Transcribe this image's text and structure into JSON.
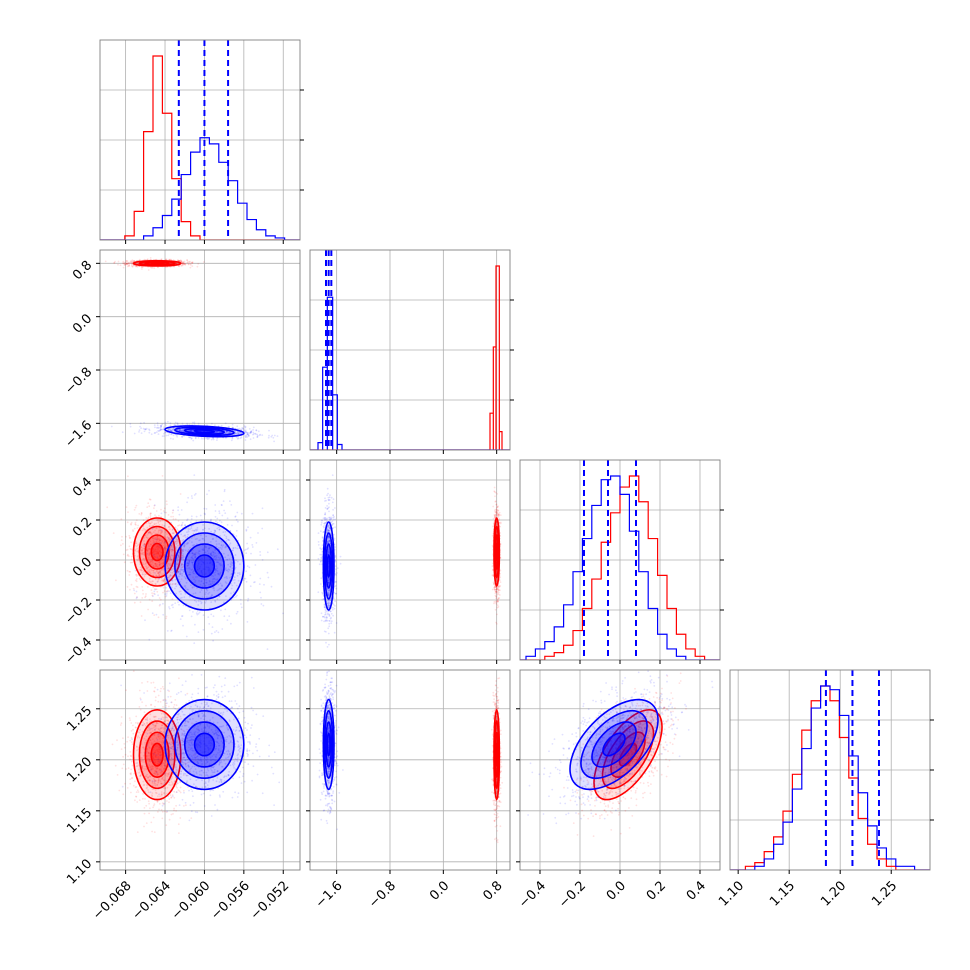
{
  "chart_data": {
    "type": "corner",
    "grid": true,
    "colors": {
      "red": "#ff0000",
      "blue": "#0000ff",
      "grid": "#b0b0b0",
      "axes": "#000000"
    },
    "series": [
      {
        "name": "",
        "color": "#ff0000",
        "mean": [
          -0.0648,
          0.8,
          0.04,
          1.205
        ],
        "std": [
          0.0012,
          0.02,
          0.085,
          0.022
        ],
        "corr": {
          "0-1": 0.0,
          "0-2": 0.0,
          "0-3": 0.0,
          "1-2": 0.0,
          "1-3": 0.0,
          "2-3": 0.62
        }
      },
      {
        "name": "",
        "color": "#0000ff",
        "mean": [
          -0.06,
          -1.72,
          -0.03,
          1.215
        ],
        "std": [
          0.002,
          0.04,
          0.11,
          0.022
        ],
        "corr": {
          "0-1": -0.35,
          "0-2": 0.0,
          "0-3": 0.0,
          "1-2": 0.0,
          "1-3": 0.0,
          "2-3": 0.55
        }
      }
    ],
    "parameters": [
      {
        "range": [
          -0.0706,
          -0.0503
        ],
        "ticks": [
          "−0.068",
          "−0.064",
          "−0.060",
          "−0.056",
          "−0.052"
        ],
        "tick_values": [
          -0.068,
          -0.064,
          -0.06,
          -0.056,
          -0.052
        ]
      },
      {
        "range": [
          -2.0,
          1.0
        ],
        "ticks": [
          "−1.6",
          "−0.8",
          "0.0",
          "0.8"
        ],
        "tick_values": [
          -1.6,
          -0.8,
          0.0,
          0.8
        ]
      },
      {
        "range": [
          -0.5,
          0.5
        ],
        "ticks": [
          "−0.4",
          "−0.2",
          "0.0",
          "0.2",
          "0.4"
        ],
        "tick_values": [
          -0.4,
          -0.2,
          0.0,
          0.2,
          0.4
        ]
      },
      {
        "range": [
          1.092,
          1.288
        ],
        "ticks": [
          "1.10",
          "1.15",
          "1.20",
          "1.25"
        ],
        "tick_values": [
          1.1,
          1.15,
          1.2,
          1.25
        ]
      }
    ],
    "quantiles_blue": [
      [
        -0.0626,
        -0.06,
        -0.0576
      ],
      [
        -1.76,
        -1.72,
        -1.68
      ],
      [
        -0.18,
        -0.06,
        0.08
      ],
      [
        1.186,
        1.212,
        1.238
      ]
    ],
    "histograms": [
      {
        "red": [
          0,
          0,
          2,
          14,
          53,
          90,
          62,
          30,
          9,
          2,
          0,
          0,
          0,
          0,
          0,
          0,
          0,
          0,
          0,
          0
        ],
        "blue": [
          0,
          0,
          0,
          0,
          2,
          6,
          12,
          20,
          32,
          43,
          50,
          47,
          38,
          29,
          18,
          10,
          5,
          2,
          1,
          0
        ]
      },
      {
        "red": [
          0,
          0,
          0,
          0,
          0,
          0,
          0,
          0,
          0,
          0,
          0,
          0,
          0,
          0,
          0,
          0,
          0,
          0,
          0,
          0,
          0,
          0,
          0,
          0,
          0,
          0,
          0,
          0,
          0,
          0,
          0,
          0,
          0,
          0,
          0,
          0,
          0,
          0,
          0,
          0,
          0,
          0,
          0,
          0,
          0,
          0,
          0,
          0,
          0,
          0,
          0,
          0,
          0,
          0,
          0,
          0,
          0,
          0,
          0,
          0,
          0,
          0,
          0,
          0,
          0,
          0,
          0,
          0,
          0,
          0,
          0,
          0,
          0,
          0,
          0,
          0,
          0,
          0,
          0,
          0,
          0,
          0,
          0,
          0,
          0,
          0,
          0,
          0,
          0,
          0,
          0,
          0,
          0,
          0,
          0,
          0,
          0,
          0,
          0,
          0,
          0,
          0,
          0,
          0,
          0,
          0,
          0,
          0,
          0,
          0,
          0,
          0,
          0,
          0,
          0,
          0,
          0,
          0,
          0,
          0,
          0,
          0,
          0,
          0,
          0,
          0,
          0,
          0,
          0,
          0,
          0,
          0,
          0,
          0,
          0,
          0,
          0,
          0,
          0,
          0,
          0,
          0,
          0,
          0,
          0,
          0,
          0,
          0,
          0,
          0,
          0,
          0,
          0,
          0,
          0,
          0,
          0,
          0,
          0,
          0,
          0,
          0,
          0,
          0,
          0,
          0,
          0,
          0,
          0,
          0,
          0,
          0,
          0,
          0,
          0,
          0,
          0,
          0,
          0,
          0,
          0,
          0,
          0,
          0,
          0,
          0,
          0,
          0,
          0,
          0,
          0,
          0,
          0,
          0,
          0,
          0,
          0,
          0,
          0,
          0
        ],
        "bins_red": [
          {
            "x0": 0.7,
            "x1": 0.75,
            "h": 0.2
          },
          {
            "x0": 0.75,
            "x1": 0.79,
            "h": 0.56
          },
          {
            "x0": 0.79,
            "x1": 0.84,
            "h": 1.0
          },
          {
            "x0": 0.84,
            "x1": 0.88,
            "h": 0.1
          }
        ],
        "bins_blue": [
          {
            "x0": -1.88,
            "x1": -1.81,
            "h": 0.04
          },
          {
            "x0": -1.81,
            "x1": -1.74,
            "h": 0.45
          },
          {
            "x0": -1.74,
            "x1": -1.66,
            "h": 0.83
          },
          {
            "x0": -1.66,
            "x1": -1.59,
            "h": 0.3
          },
          {
            "x0": -1.59,
            "x1": -1.52,
            "h": 0.03
          }
        ]
      },
      {
        "red": [
          0,
          0,
          1,
          2,
          4,
          8,
          14,
          22,
          32,
          40,
          47,
          50,
          43,
          33,
          23,
          14,
          7,
          3,
          1,
          0
        ],
        "blue": [
          1,
          3,
          5,
          9,
          15,
          24,
          33,
          42,
          49,
          50,
          45,
          35,
          24,
          14,
          7,
          3,
          1,
          0,
          0,
          0
        ]
      },
      {
        "red": [
          0,
          1,
          2,
          5,
          9,
          16,
          26,
          38,
          46,
          50,
          46,
          36,
          25,
          14,
          7,
          3,
          1,
          0,
          0,
          0
        ],
        "blue": [
          0,
          0,
          1,
          3,
          7,
          13,
          22,
          33,
          44,
          50,
          49,
          42,
          31,
          21,
          12,
          6,
          3,
          1,
          1,
          0
        ]
      }
    ]
  }
}
